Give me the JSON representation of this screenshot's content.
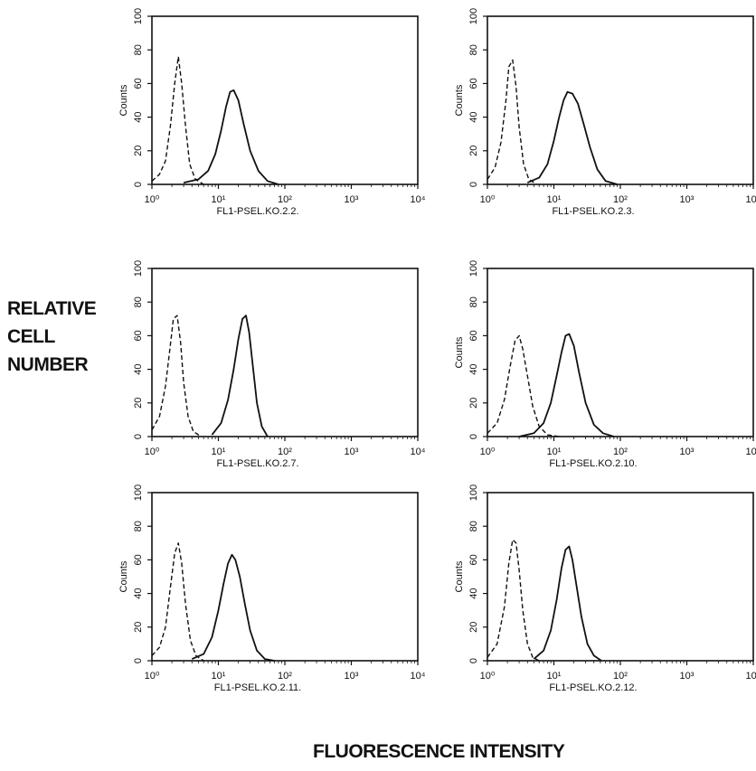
{
  "y_axis_title": [
    "RELATIVE",
    "CELL",
    "NUMBER"
  ],
  "x_axis_title": "FLUORESCENCE INTENSITY",
  "chart_data": [
    {
      "type": "line",
      "xlabel": "FL1-PSEL.KO.2.2.",
      "ylabel": "Counts",
      "xscale": "log",
      "xlim": [
        1,
        10000
      ],
      "ylim": [
        0,
        100
      ],
      "xticks": [
        "10⁰",
        "10¹",
        "10²",
        "10³",
        "10⁴"
      ],
      "yticks": [
        "0",
        "20",
        "40",
        "60",
        "80",
        "100"
      ],
      "series": [
        {
          "style": "dashed",
          "x": [
            1.0,
            1.3,
            1.6,
            1.9,
            2.2,
            2.5,
            2.8,
            3.2,
            3.7,
            4.5,
            6
          ],
          "values": [
            2,
            6,
            14,
            35,
            60,
            76,
            60,
            35,
            12,
            3,
            0
          ]
        },
        {
          "style": "solid",
          "x": [
            3,
            5,
            7,
            9,
            11,
            13,
            15,
            17,
            20,
            24,
            30,
            40,
            55,
            80
          ],
          "values": [
            1,
            3,
            8,
            18,
            32,
            46,
            55,
            56,
            50,
            36,
            20,
            8,
            2,
            0
          ]
        }
      ]
    },
    {
      "type": "line",
      "xlabel": "FL1-PSEL.KO.2.3.",
      "ylabel": "Counts",
      "xscale": "log",
      "xlim": [
        1,
        10000
      ],
      "ylim": [
        0,
        100
      ],
      "xticks": [
        "10⁰",
        "10¹",
        "10²",
        "10³",
        "10⁴"
      ],
      "yticks": [
        "0",
        "20",
        "40",
        "60",
        "80",
        "100"
      ],
      "series": [
        {
          "style": "dashed",
          "x": [
            1.0,
            1.3,
            1.6,
            1.9,
            2.1,
            2.4,
            2.7,
            3.0,
            3.5,
            4.2,
            5.5
          ],
          "values": [
            3,
            10,
            25,
            50,
            70,
            74,
            58,
            34,
            12,
            3,
            0
          ]
        },
        {
          "style": "solid",
          "x": [
            4,
            6,
            8,
            10,
            12,
            14,
            16,
            19,
            23,
            28,
            35,
            45,
            60,
            90
          ],
          "values": [
            1,
            4,
            12,
            26,
            40,
            50,
            55,
            54,
            48,
            36,
            22,
            9,
            2,
            0
          ]
        }
      ]
    },
    {
      "type": "line",
      "xlabel": "FL1-PSEL.KO.2.7.",
      "ylabel": "",
      "xscale": "log",
      "xlim": [
        1,
        10000
      ],
      "ylim": [
        0,
        100
      ],
      "xticks": [
        "10⁰",
        "10¹",
        "10²",
        "10³",
        "10⁴"
      ],
      "yticks": [
        "0",
        "20",
        "40",
        "60",
        "80",
        "100"
      ],
      "series": [
        {
          "style": "dashed",
          "x": [
            1.0,
            1.3,
            1.6,
            1.9,
            2.1,
            2.4,
            2.7,
            3.0,
            3.5,
            4.2,
            5.5
          ],
          "values": [
            4,
            12,
            30,
            55,
            70,
            72,
            56,
            32,
            12,
            3,
            0
          ]
        },
        {
          "style": "solid",
          "x": [
            8,
            11,
            14,
            17,
            20,
            23,
            26,
            29,
            33,
            38,
            45,
            55
          ],
          "values": [
            1,
            8,
            22,
            40,
            58,
            70,
            72,
            62,
            42,
            20,
            6,
            0
          ]
        }
      ]
    },
    {
      "type": "line",
      "xlabel": "FL1-PSEL.KO.2.10.",
      "ylabel": "Counts",
      "xscale": "log",
      "xlim": [
        1,
        10000
      ],
      "ylim": [
        0,
        100
      ],
      "xticks": [
        "10⁰",
        "10¹",
        "10²",
        "10³",
        "10⁴"
      ],
      "yticks": [
        "0",
        "20",
        "40",
        "60",
        "80",
        "100"
      ],
      "series": [
        {
          "style": "dashed",
          "x": [
            1.0,
            1.4,
            1.8,
            2.2,
            2.6,
            3.0,
            3.4,
            4.0,
            4.8,
            6,
            8,
            12
          ],
          "values": [
            2,
            8,
            22,
            42,
            57,
            60,
            52,
            36,
            18,
            6,
            1,
            0
          ]
        },
        {
          "style": "solid",
          "x": [
            3,
            5,
            7,
            9,
            11,
            13,
            15,
            17,
            20,
            24,
            30,
            40,
            55,
            80
          ],
          "values": [
            0,
            2,
            8,
            20,
            36,
            50,
            60,
            61,
            54,
            38,
            20,
            7,
            2,
            0
          ]
        }
      ]
    },
    {
      "type": "line",
      "xlabel": "FL1-PSEL.KO.2.11.",
      "ylabel": "Counts",
      "xscale": "log",
      "xlim": [
        1,
        10000
      ],
      "ylim": [
        0,
        100
      ],
      "xticks": [
        "10⁰",
        "10¹",
        "10²",
        "10³",
        "10⁴"
      ],
      "yticks": [
        "0",
        "20",
        "40",
        "60",
        "80",
        "100"
      ],
      "series": [
        {
          "style": "dashed",
          "x": [
            1.0,
            1.3,
            1.6,
            1.9,
            2.2,
            2.5,
            2.8,
            3.2,
            3.8,
            4.6,
            6
          ],
          "values": [
            3,
            8,
            20,
            44,
            64,
            70,
            58,
            34,
            12,
            3,
            0
          ]
        },
        {
          "style": "solid",
          "x": [
            4,
            6,
            8,
            10,
            12,
            14,
            16,
            18,
            21,
            25,
            30,
            38,
            50,
            70
          ],
          "values": [
            1,
            4,
            14,
            30,
            46,
            58,
            63,
            60,
            50,
            34,
            18,
            6,
            1,
            0
          ]
        }
      ]
    },
    {
      "type": "line",
      "xlabel": "FL1-PSEL.KO.2.12.",
      "ylabel": "Counts",
      "xscale": "log",
      "xlim": [
        1,
        10000
      ],
      "ylim": [
        0,
        100
      ],
      "xticks": [
        "10⁰",
        "10¹",
        "10²",
        "10³",
        "10⁴"
      ],
      "yticks": [
        "0",
        "20",
        "40",
        "60",
        "80",
        "100"
      ],
      "series": [
        {
          "style": "dashed",
          "x": [
            1.0,
            1.4,
            1.8,
            2.1,
            2.4,
            2.7,
            3.0,
            3.4,
            4.0,
            4.8,
            6
          ],
          "values": [
            2,
            10,
            32,
            58,
            72,
            70,
            54,
            30,
            10,
            2,
            0
          ]
        },
        {
          "style": "solid",
          "x": [
            5,
            7,
            9,
            11,
            13,
            15,
            17,
            19,
            22,
            26,
            32,
            40,
            52
          ],
          "values": [
            1,
            6,
            18,
            36,
            55,
            66,
            68,
            60,
            44,
            26,
            10,
            3,
            0
          ]
        }
      ]
    }
  ]
}
